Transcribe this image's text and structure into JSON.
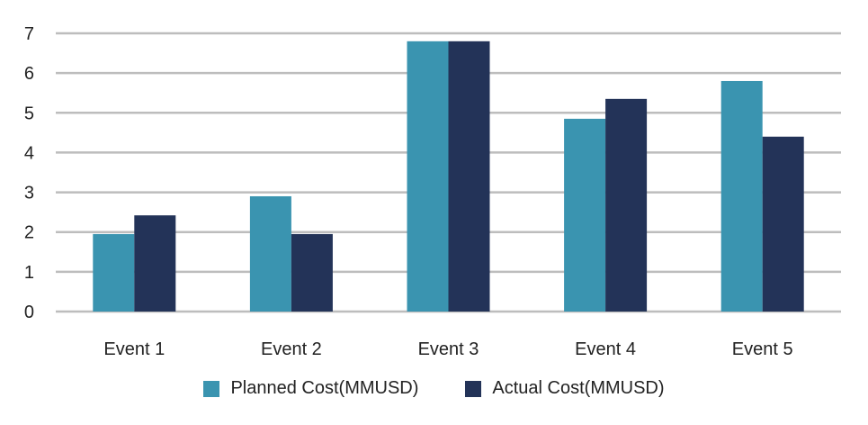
{
  "chart_data": {
    "type": "bar",
    "categories": [
      "Event 1",
      "Event 2",
      "Event 3",
      "Event 4",
      "Event 5"
    ],
    "series": [
      {
        "name": "Planned Cost(MMUSD)",
        "color": "#3a94b0",
        "values": [
          1.95,
          2.9,
          6.8,
          4.85,
          5.8
        ]
      },
      {
        "name": "Actual Cost(MMUSD)",
        "color": "#233358",
        "values": [
          2.42,
          1.95,
          6.8,
          5.35,
          4.4
        ]
      }
    ],
    "yticks": [
      0,
      1,
      2,
      3,
      4,
      5,
      6,
      7
    ],
    "ylim": [
      0,
      7
    ],
    "grid": true,
    "grid_color": "#bdbdbd",
    "legend_position": "bottom",
    "title": "",
    "xlabel": "",
    "ylabel": ""
  }
}
